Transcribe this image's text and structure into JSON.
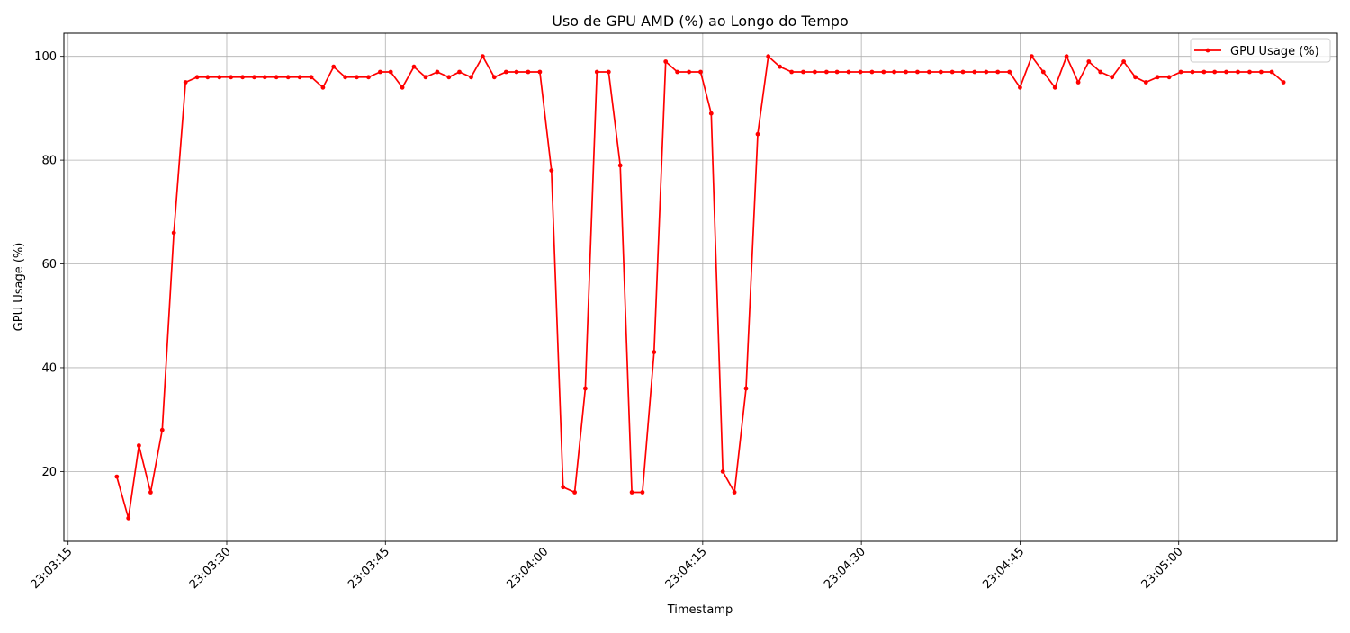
{
  "chart_data": {
    "type": "line",
    "title": "Uso de GPU AMD (%) ao Longo do Tempo",
    "xlabel": "Timestamp",
    "ylabel": "GPU Usage (%)",
    "x_tick_labels": [
      "23:03:15",
      "23:03:30",
      "23:03:45",
      "23:04:00",
      "23:04:15",
      "23:04:30",
      "23:04:45",
      "23:05:00"
    ],
    "y_tick_labels": [
      "20",
      "40",
      "60",
      "80",
      "100"
    ],
    "xlim": [
      "23:03:14.6",
      "23:05:15.0"
    ],
    "ylim": [
      6.55,
      104.45
    ],
    "grid": true,
    "legend_position": "top-right",
    "colors": {
      "line": "#ff0000",
      "grid": "#b0b0b0",
      "axis": "#000000"
    },
    "series": [
      {
        "name": "GPU Usage (%)",
        "x": [
          "23:03:19.6",
          "23:03:20.7",
          "23:03:21.7",
          "23:03:22.8",
          "23:03:23.9",
          "23:03:25.0",
          "23:03:26.1",
          "23:03:27.2",
          "23:03:28.2",
          "23:03:29.3",
          "23:03:30.4",
          "23:03:31.5",
          "23:03:32.6",
          "23:03:33.6",
          "23:03:34.7",
          "23:03:35.8",
          "23:03:36.9",
          "23:03:38.0",
          "23:03:39.1",
          "23:03:40.1",
          "23:03:41.2",
          "23:03:42.3",
          "23:03:43.4",
          "23:03:44.5",
          "23:03:45.5",
          "23:03:46.6",
          "23:03:47.7",
          "23:03:48.8",
          "23:03:49.9",
          "23:03:51.0",
          "23:03:52.0",
          "23:03:53.1",
          "23:03:54.2",
          "23:03:55.3",
          "23:03:56.4",
          "23:03:57.4",
          "23:03:58.5",
          "23:03:59.6",
          "23:04:00.7",
          "23:04:01.8",
          "23:04:02.9",
          "23:04:03.9",
          "23:04:05.0",
          "23:04:06.1",
          "23:04:07.2",
          "23:04:08.3",
          "23:04:09.3",
          "23:04:10.4",
          "23:04:11.5",
          "23:04:12.6",
          "23:04:13.7",
          "23:04:14.8",
          "23:04:15.8",
          "23:04:16.9",
          "23:04:18.0",
          "23:04:19.1",
          "23:04:20.2",
          "23:04:21.2",
          "23:04:22.3",
          "23:04:23.4",
          "23:04:24.5",
          "23:04:25.6",
          "23:04:26.7",
          "23:04:27.7",
          "23:04:28.8",
          "23:04:29.9",
          "23:04:31.0",
          "23:04:32.1",
          "23:04:33.1",
          "23:04:34.2",
          "23:04:35.3",
          "23:04:36.4",
          "23:04:37.5",
          "23:04:38.6",
          "23:04:39.6",
          "23:04:40.7",
          "23:04:41.8",
          "23:04:42.9",
          "23:04:44.0",
          "23:04:45.0",
          "23:04:46.1",
          "23:04:47.2",
          "23:04:48.3",
          "23:04:49.4",
          "23:04:50.5",
          "23:04:51.5",
          "23:04:52.6",
          "23:04:53.7",
          "23:04:54.8",
          "23:04:55.9",
          "23:04:56.9",
          "23:04:58.0",
          "23:04:59.1",
          "23:05:00.2",
          "23:05:01.3",
          "23:05:02.4",
          "23:05:03.4",
          "23:05:04.5",
          "23:05:05.6",
          "23:05:06.7",
          "23:05:07.8",
          "23:05:08.8",
          "23:05:09.9"
        ],
        "values": [
          19,
          11,
          25,
          16,
          28,
          66,
          95,
          96,
          96,
          96,
          96,
          96,
          96,
          96,
          96,
          96,
          96,
          96,
          94,
          98,
          96,
          96,
          96,
          97,
          97,
          94,
          98,
          96,
          97,
          96,
          97,
          96,
          100,
          96,
          97,
          97,
          97,
          97,
          78,
          17,
          16,
          36,
          97,
          97,
          79,
          16,
          16,
          43,
          99,
          97,
          97,
          97,
          89,
          20,
          16,
          36,
          85,
          100,
          98,
          97,
          97,
          97,
          97,
          97,
          97,
          97,
          97,
          97,
          97,
          97,
          97,
          97,
          97,
          97,
          97,
          97,
          97,
          97,
          97,
          94,
          100,
          97,
          94,
          100,
          95,
          99,
          97,
          96,
          99,
          96,
          95,
          96,
          96,
          97,
          97,
          97,
          97,
          97,
          97,
          97,
          97,
          97,
          95
        ]
      }
    ]
  }
}
